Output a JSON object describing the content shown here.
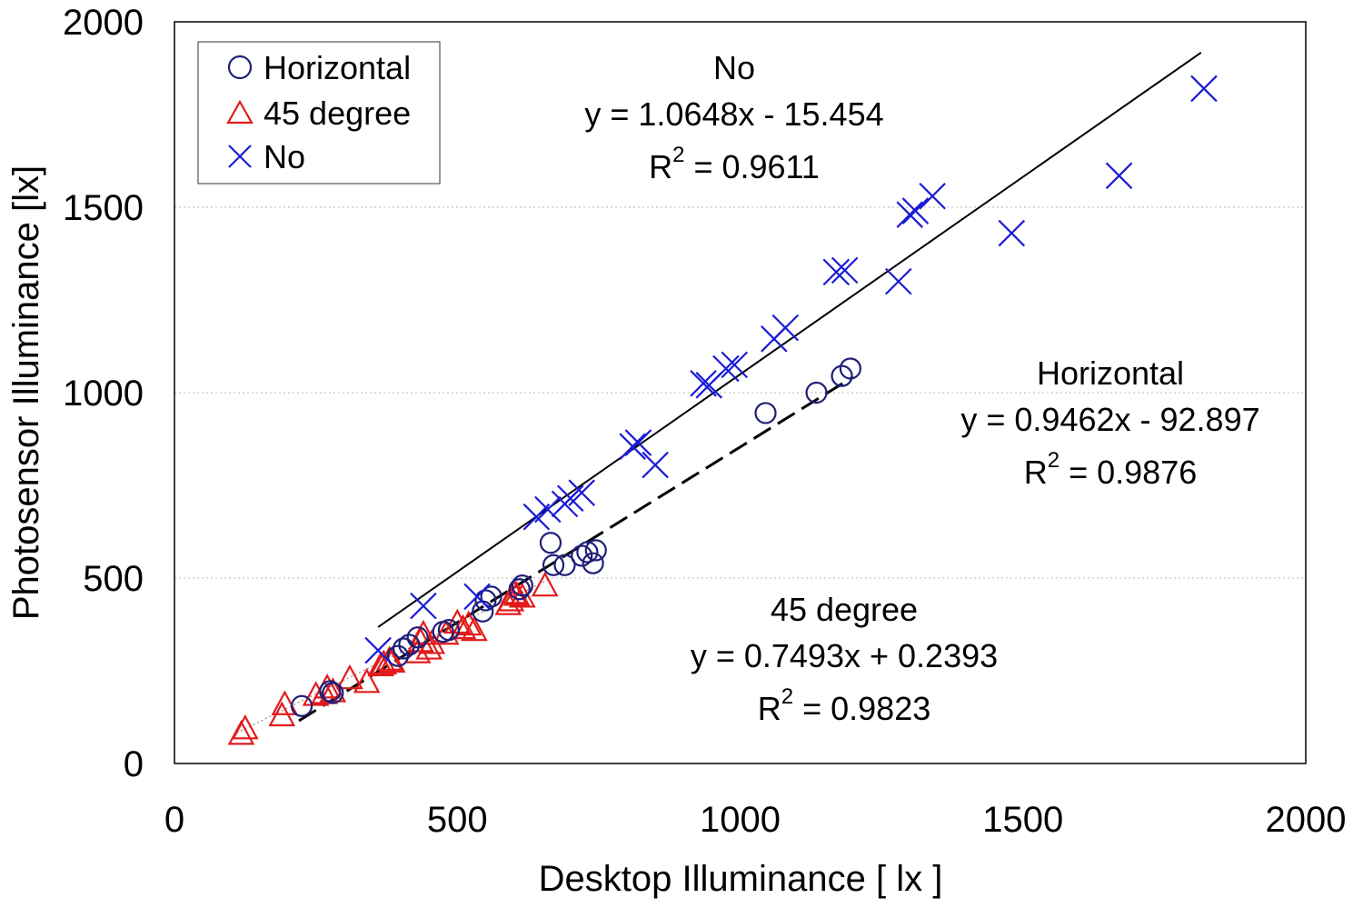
{
  "colors": {
    "horizontal": "#1f1f7a",
    "deg45": "#e31b1b",
    "no": "#1a1ad6",
    "axis": "#000000",
    "grid": "#b8b8b8"
  },
  "chart_data": {
    "type": "scatter",
    "xlabel": "Desktop Illuminance [ lx ]",
    "ylabel": "Photosensor  Illuminance  [lx]",
    "xlim": [
      0,
      2000
    ],
    "ylim": [
      0,
      2000
    ],
    "xticks": [
      "0",
      "500",
      "1000",
      "1500",
      "2000"
    ],
    "yticks": [
      "0",
      "500",
      "1000",
      "1500",
      "2000"
    ],
    "grid": "horizontal dotted",
    "legend_position": "top-left",
    "series": [
      {
        "name": "Horizontal",
        "marker": "circle",
        "color": "#1f1f7a",
        "x": [
          225,
          275,
          280,
          395,
          405,
          415,
          430,
          475,
          485,
          545,
          550,
          560,
          610,
          615,
          665,
          670,
          690,
          720,
          730,
          740,
          745,
          1045,
          1135,
          1180,
          1195
        ],
        "y": [
          155,
          195,
          190,
          290,
          310,
          320,
          340,
          355,
          360,
          410,
          440,
          450,
          470,
          480,
          595,
          535,
          535,
          560,
          570,
          540,
          575,
          945,
          1000,
          1045,
          1065
        ],
        "fit": {
          "slope": 0.9462,
          "intercept": -92.897,
          "x_range": [
            220,
            1200
          ],
          "style": "dashed"
        },
        "annotation": {
          "title": "Horizontal",
          "equation": "y = 0.9462x - 92.897",
          "r2_prefix": "R",
          "r2_sup": "2",
          "r2_value": " = 0.9876"
        }
      },
      {
        "name": "45 degree",
        "marker": "triangle",
        "color": "#e31b1b",
        "x": [
          118,
          125,
          190,
          195,
          250,
          265,
          270,
          280,
          310,
          340,
          365,
          370,
          380,
          385,
          430,
          435,
          440,
          450,
          455,
          480,
          500,
          510,
          520,
          530,
          590,
          595,
          600,
          605,
          615,
          655
        ],
        "y": [
          80,
          95,
          130,
          160,
          185,
          190,
          205,
          195,
          230,
          220,
          265,
          270,
          280,
          275,
          300,
          330,
          350,
          310,
          325,
          350,
          380,
          365,
          375,
          360,
          430,
          440,
          460,
          455,
          450,
          480
        ],
        "fit": {
          "slope": 0.7493,
          "intercept": 0.2393,
          "x_range": [
            110,
            660
          ],
          "style": "dotted"
        },
        "annotation": {
          "title": "45 degree",
          "equation": "y = 0.7493x + 0.2393",
          "r2_prefix": "R",
          "r2_sup": "2",
          "r2_value": " = 0.9823"
        }
      },
      {
        "name": "No",
        "marker": "cross",
        "color": "#1a1ad6",
        "x": [
          360,
          440,
          535,
          640,
          660,
          690,
          700,
          720,
          810,
          820,
          850,
          935,
          945,
          975,
          990,
          1060,
          1080,
          1170,
          1185,
          1280,
          1300,
          1310,
          1340,
          1480,
          1670,
          1820
        ],
        "y": [
          305,
          425,
          450,
          665,
          685,
          700,
          715,
          730,
          855,
          865,
          805,
          1025,
          1020,
          1065,
          1075,
          1145,
          1175,
          1325,
          1330,
          1300,
          1480,
          1490,
          1530,
          1430,
          1585,
          1820
        ],
        "fit": {
          "slope": 1.0648,
          "intercept": -15.454,
          "x_range": [
            360,
            1815
          ],
          "style": "solid"
        },
        "annotation": {
          "title": "No",
          "equation": "y = 1.0648x - 15.454",
          "r2_prefix": "R",
          "r2_sup": "2",
          "r2_value": " = 0.9611"
        }
      }
    ]
  }
}
